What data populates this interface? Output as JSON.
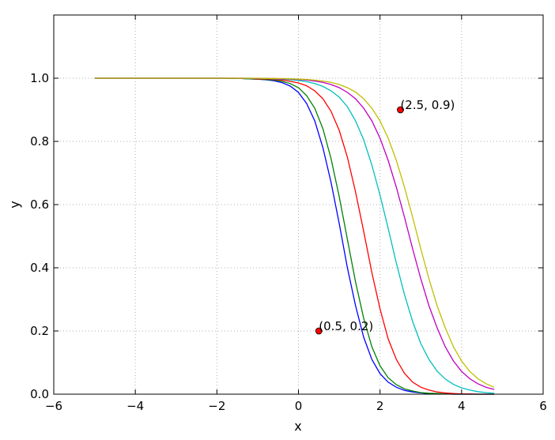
{
  "chart_data": {
    "type": "line",
    "title": "",
    "xlabel": "x",
    "ylabel": "y",
    "xlim": [
      -6,
      6
    ],
    "ylim": [
      0,
      1.2
    ],
    "xticks": [
      -6,
      -4,
      -2,
      0,
      2,
      4,
      6
    ],
    "xtick_labels": [
      "−6",
      "−4",
      "−2",
      "0",
      "2",
      "4",
      "6"
    ],
    "yticks": [
      0.0,
      0.2,
      0.4,
      0.6,
      0.8,
      1.0
    ],
    "ytick_labels": [
      "0.0",
      "0.2",
      "0.4",
      "0.6",
      "0.8",
      "1.0"
    ],
    "grid": true,
    "x": [
      -5.0,
      -4.8,
      -4.6,
      -4.4,
      -4.2,
      -4.0,
      -3.8,
      -3.6,
      -3.4,
      -3.2,
      -3.0,
      -2.8,
      -2.6,
      -2.4,
      -2.2,
      -2.0,
      -1.8,
      -1.6,
      -1.4,
      -1.2,
      -1.0,
      -0.8,
      -0.6,
      -0.4,
      -0.2,
      0.0,
      0.2,
      0.4,
      0.6,
      0.8,
      1.0,
      1.2,
      1.4,
      1.6,
      1.8,
      2.0,
      2.2,
      2.4,
      2.6,
      2.8,
      3.0,
      3.2,
      3.4,
      3.6,
      3.8,
      4.0,
      4.2,
      4.4,
      4.6,
      4.8
    ],
    "series": [
      {
        "color": "#0000ff",
        "values": [
          1.0,
          1.0,
          1.0,
          1.0,
          1.0,
          1.0,
          1.0,
          1.0,
          1.0,
          1.0,
          1.0,
          1.0,
          1.0,
          1.0,
          1.0,
          1.0,
          1.0,
          0.999,
          0.999,
          0.998,
          0.997,
          0.995,
          0.992,
          0.986,
          0.975,
          0.955,
          0.92,
          0.865,
          0.78,
          0.67,
          0.54,
          0.4,
          0.28,
          0.18,
          0.11,
          0.065,
          0.038,
          0.022,
          0.012,
          0.007,
          0.004,
          0.002,
          0.001,
          0.001,
          0.0,
          0.0,
          0.0,
          0.0,
          0.0,
          0.0
        ]
      },
      {
        "color": "#008000",
        "values": [
          1.0,
          1.0,
          1.0,
          1.0,
          1.0,
          1.0,
          1.0,
          1.0,
          1.0,
          1.0,
          1.0,
          1.0,
          1.0,
          1.0,
          1.0,
          1.0,
          1.0,
          0.999,
          0.999,
          0.998,
          0.997,
          0.996,
          0.994,
          0.99,
          0.983,
          0.97,
          0.945,
          0.905,
          0.84,
          0.745,
          0.625,
          0.49,
          0.355,
          0.24,
          0.15,
          0.09,
          0.052,
          0.03,
          0.017,
          0.01,
          0.005,
          0.003,
          0.002,
          0.001,
          0.0,
          0.0,
          0.0,
          0.0,
          0.0,
          0.0
        ]
      },
      {
        "color": "#ff0000",
        "values": [
          1.0,
          1.0,
          1.0,
          1.0,
          1.0,
          1.0,
          1.0,
          1.0,
          1.0,
          1.0,
          1.0,
          1.0,
          1.0,
          1.0,
          1.0,
          1.0,
          1.0,
          1.0,
          0.999,
          0.999,
          0.998,
          0.998,
          0.996,
          0.994,
          0.99,
          0.985,
          0.976,
          0.96,
          0.935,
          0.895,
          0.835,
          0.75,
          0.64,
          0.515,
          0.385,
          0.27,
          0.175,
          0.11,
          0.066,
          0.038,
          0.022,
          0.013,
          0.007,
          0.004,
          0.002,
          0.001,
          0.001,
          0.0,
          0.0,
          0.0
        ]
      },
      {
        "color": "#00bfbf",
        "values": [
          1.0,
          1.0,
          1.0,
          1.0,
          1.0,
          1.0,
          1.0,
          1.0,
          1.0,
          1.0,
          1.0,
          1.0,
          1.0,
          1.0,
          1.0,
          1.0,
          1.0,
          1.0,
          1.0,
          0.999,
          0.999,
          0.999,
          0.998,
          0.997,
          0.995,
          0.993,
          0.989,
          0.983,
          0.974,
          0.96,
          0.94,
          0.91,
          0.865,
          0.805,
          0.725,
          0.63,
          0.525,
          0.415,
          0.315,
          0.23,
          0.16,
          0.11,
          0.073,
          0.048,
          0.031,
          0.02,
          0.013,
          0.008,
          0.005,
          0.003
        ]
      },
      {
        "color": "#bf00bf",
        "values": [
          1.0,
          1.0,
          1.0,
          1.0,
          1.0,
          1.0,
          1.0,
          1.0,
          1.0,
          1.0,
          1.0,
          1.0,
          1.0,
          1.0,
          1.0,
          1.0,
          1.0,
          1.0,
          1.0,
          1.0,
          0.999,
          0.999,
          0.999,
          0.998,
          0.997,
          0.996,
          0.994,
          0.991,
          0.987,
          0.98,
          0.97,
          0.955,
          0.935,
          0.905,
          0.865,
          0.81,
          0.74,
          0.655,
          0.56,
          0.46,
          0.365,
          0.28,
          0.21,
          0.15,
          0.105,
          0.072,
          0.049,
          0.033,
          0.022,
          0.015
        ]
      },
      {
        "color": "#bfbf00",
        "values": [
          1.0,
          1.0,
          1.0,
          1.0,
          1.0,
          1.0,
          1.0,
          1.0,
          1.0,
          1.0,
          1.0,
          1.0,
          1.0,
          1.0,
          1.0,
          1.0,
          1.0,
          1.0,
          1.0,
          1.0,
          1.0,
          0.999,
          0.999,
          0.999,
          0.998,
          0.997,
          0.996,
          0.994,
          0.991,
          0.987,
          0.98,
          0.97,
          0.956,
          0.935,
          0.905,
          0.865,
          0.81,
          0.74,
          0.655,
          0.56,
          0.46,
          0.365,
          0.28,
          0.21,
          0.15,
          0.105,
          0.072,
          0.049,
          0.033,
          0.022
        ]
      }
    ],
    "points": [
      {
        "x": 0.5,
        "y": 0.2,
        "label": "(0.5, 0.2)",
        "color": "#ff0000"
      },
      {
        "x": 2.5,
        "y": 0.9,
        "label": "(2.5, 0.9)",
        "color": "#ff0000"
      }
    ]
  }
}
